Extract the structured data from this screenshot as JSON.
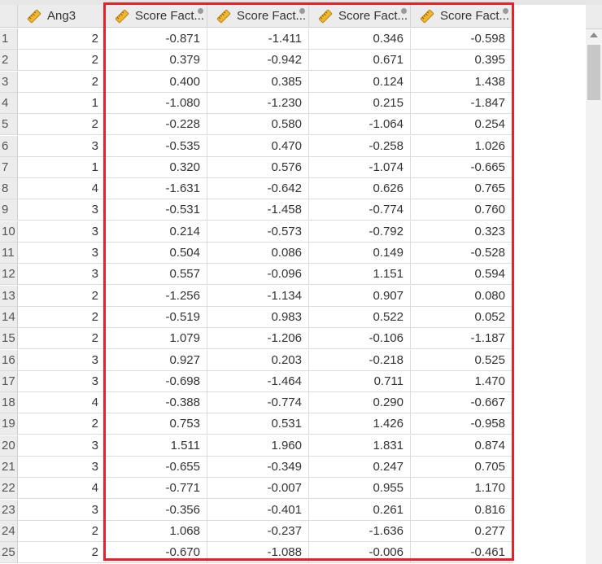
{
  "columns": [
    {
      "label": "Ang3",
      "icon": "ruler-icon"
    },
    {
      "label": "Score Fact...",
      "icon": "ruler-icon"
    },
    {
      "label": "Score Fact...",
      "icon": "ruler-icon"
    },
    {
      "label": "Score Fact...",
      "icon": "ruler-icon"
    },
    {
      "label": "Score Fact...",
      "icon": "ruler-icon"
    }
  ],
  "rows": [
    {
      "n": "1",
      "cells": [
        "2",
        "-0.871",
        "-1.411",
        "0.346",
        "-0.598"
      ]
    },
    {
      "n": "2",
      "cells": [
        "2",
        "0.379",
        "-0.942",
        "0.671",
        "0.395"
      ]
    },
    {
      "n": "3",
      "cells": [
        "2",
        "0.400",
        "0.385",
        "0.124",
        "1.438"
      ]
    },
    {
      "n": "4",
      "cells": [
        "1",
        "-1.080",
        "-1.230",
        "0.215",
        "-1.847"
      ]
    },
    {
      "n": "5",
      "cells": [
        "2",
        "-0.228",
        "0.580",
        "-1.064",
        "0.254"
      ]
    },
    {
      "n": "6",
      "cells": [
        "3",
        "-0.535",
        "0.470",
        "-0.258",
        "1.026"
      ]
    },
    {
      "n": "7",
      "cells": [
        "1",
        "0.320",
        "0.576",
        "-1.074",
        "-0.665"
      ]
    },
    {
      "n": "8",
      "cells": [
        "4",
        "-1.631",
        "-0.642",
        "0.626",
        "0.765"
      ]
    },
    {
      "n": "9",
      "cells": [
        "3",
        "-0.531",
        "-1.458",
        "-0.774",
        "0.760"
      ]
    },
    {
      "n": "10",
      "cells": [
        "3",
        "0.214",
        "-0.573",
        "-0.792",
        "0.323"
      ]
    },
    {
      "n": "11",
      "cells": [
        "3",
        "0.504",
        "0.086",
        "0.149",
        "-0.528"
      ]
    },
    {
      "n": "12",
      "cells": [
        "3",
        "0.557",
        "-0.096",
        "1.151",
        "0.594"
      ]
    },
    {
      "n": "13",
      "cells": [
        "2",
        "-1.256",
        "-1.134",
        "0.907",
        "0.080"
      ]
    },
    {
      "n": "14",
      "cells": [
        "2",
        "-0.519",
        "0.983",
        "0.522",
        "0.052"
      ]
    },
    {
      "n": "15",
      "cells": [
        "2",
        "1.079",
        "-1.206",
        "-0.106",
        "-1.187"
      ]
    },
    {
      "n": "16",
      "cells": [
        "3",
        "0.927",
        "0.203",
        "-0.218",
        "0.525"
      ]
    },
    {
      "n": "17",
      "cells": [
        "3",
        "-0.698",
        "-1.464",
        "0.711",
        "1.470"
      ]
    },
    {
      "n": "18",
      "cells": [
        "4",
        "-0.388",
        "-0.774",
        "0.290",
        "-0.667"
      ]
    },
    {
      "n": "19",
      "cells": [
        "2",
        "0.753",
        "0.531",
        "1.426",
        "-0.958"
      ]
    },
    {
      "n": "20",
      "cells": [
        "3",
        "1.511",
        "1.960",
        "1.831",
        "0.874"
      ]
    },
    {
      "n": "21",
      "cells": [
        "3",
        "-0.655",
        "-0.349",
        "0.247",
        "0.705"
      ]
    },
    {
      "n": "22",
      "cells": [
        "4",
        "-0.771",
        "-0.007",
        "0.955",
        "1.170"
      ]
    },
    {
      "n": "23",
      "cells": [
        "3",
        "-0.356",
        "-0.401",
        "0.261",
        "0.816"
      ]
    },
    {
      "n": "24",
      "cells": [
        "2",
        "1.068",
        "-0.237",
        "-1.636",
        "0.277"
      ]
    },
    {
      "n": "25",
      "cells": [
        "2",
        "-0.670",
        "-1.088",
        "-0.006",
        "-0.461"
      ]
    }
  ],
  "colors": {
    "highlight": "#e8202a",
    "header_bg": "#ececec",
    "ruler_fill": "#f3b52e"
  }
}
